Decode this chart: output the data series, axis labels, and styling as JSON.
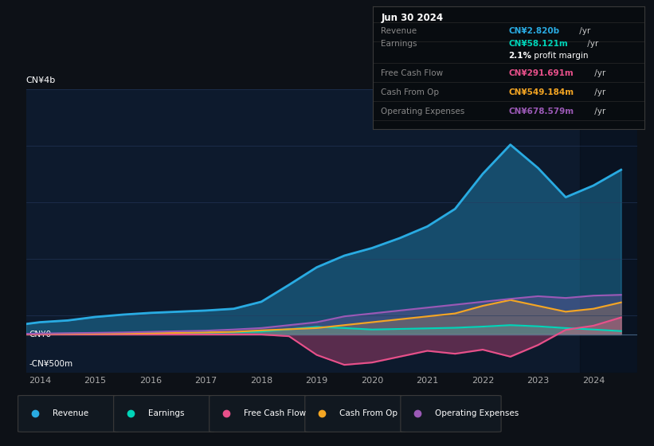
{
  "bg_color": "#0d1117",
  "plot_bg_color": "#0d1a2d",
  "grid_color": "#253a5e",
  "title_date": "Jun 30 2024",
  "ylabel_top": "CN¥4b",
  "ylabel_zero": "CN¥0",
  "ylabel_neg": "-CN¥500m",
  "x_ticks": [
    2014,
    2015,
    2016,
    2017,
    2018,
    2019,
    2020,
    2021,
    2022,
    2023,
    2024
  ],
  "ylim": [
    -650000000,
    4200000000
  ],
  "series_colors": {
    "Revenue": "#29abe2",
    "Earnings": "#00d4b8",
    "Free Cash Flow": "#e8508a",
    "Cash From Op": "#f5a623",
    "Operating Expenses": "#9b59b6"
  },
  "legend_items": [
    "Revenue",
    "Earnings",
    "Free Cash Flow",
    "Cash From Op",
    "Operating Expenses"
  ],
  "legend_colors": [
    "#29abe2",
    "#00d4b8",
    "#e8508a",
    "#f5a623",
    "#9b59b6"
  ],
  "table_rows": [
    {
      "label": "Revenue",
      "value": "CN¥2.820b /yr",
      "val_color": "#29abe2"
    },
    {
      "label": "Earnings",
      "value": "CN¥58.121m /yr",
      "val_color": "#00d4b8"
    },
    {
      "label": "",
      "value": "2.1% profit margin",
      "val_color": "#ffffff"
    },
    {
      "label": "Free Cash Flow",
      "value": "CN¥291.691m /yr",
      "val_color": "#e8508a"
    },
    {
      "label": "Cash From Op",
      "value": "CN¥549.184m /yr",
      "val_color": "#f5a623"
    },
    {
      "label": "Operating Expenses",
      "value": "CN¥678.579m /yr",
      "val_color": "#9b59b6"
    }
  ],
  "years": [
    2013.75,
    2014.0,
    2014.5,
    2015.0,
    2015.5,
    2016.0,
    2016.5,
    2017.0,
    2017.5,
    2018.0,
    2018.5,
    2019.0,
    2019.5,
    2020.0,
    2020.5,
    2021.0,
    2021.5,
    2022.0,
    2022.5,
    2023.0,
    2023.5,
    2024.0,
    2024.5
  ],
  "revenue": [
    180000000,
    210000000,
    240000000,
    300000000,
    340000000,
    370000000,
    390000000,
    410000000,
    440000000,
    560000000,
    850000000,
    1150000000,
    1350000000,
    1480000000,
    1650000000,
    1850000000,
    2150000000,
    2750000000,
    3250000000,
    2850000000,
    2350000000,
    2550000000,
    2820000000
  ],
  "earnings": [
    8000000,
    10000000,
    15000000,
    18000000,
    22000000,
    25000000,
    28000000,
    32000000,
    38000000,
    50000000,
    90000000,
    130000000,
    110000000,
    85000000,
    95000000,
    105000000,
    115000000,
    135000000,
    160000000,
    140000000,
    110000000,
    85000000,
    58121000
  ],
  "free_cash_flow": [
    0,
    0,
    0,
    0,
    0,
    0,
    0,
    0,
    0,
    0,
    -30000000,
    -350000000,
    -520000000,
    -480000000,
    -380000000,
    -280000000,
    -330000000,
    -260000000,
    -380000000,
    -180000000,
    80000000,
    150000000,
    291691000
  ],
  "cash_from_op": [
    8000000,
    10000000,
    12000000,
    15000000,
    18000000,
    22000000,
    28000000,
    35000000,
    45000000,
    70000000,
    90000000,
    110000000,
    160000000,
    210000000,
    260000000,
    310000000,
    360000000,
    490000000,
    590000000,
    490000000,
    390000000,
    440000000,
    549184000
  ],
  "operating_expenses": [
    12000000,
    16000000,
    22000000,
    28000000,
    35000000,
    45000000,
    55000000,
    65000000,
    85000000,
    110000000,
    160000000,
    210000000,
    310000000,
    360000000,
    410000000,
    460000000,
    510000000,
    560000000,
    610000000,
    655000000,
    625000000,
    665000000,
    678579000
  ]
}
